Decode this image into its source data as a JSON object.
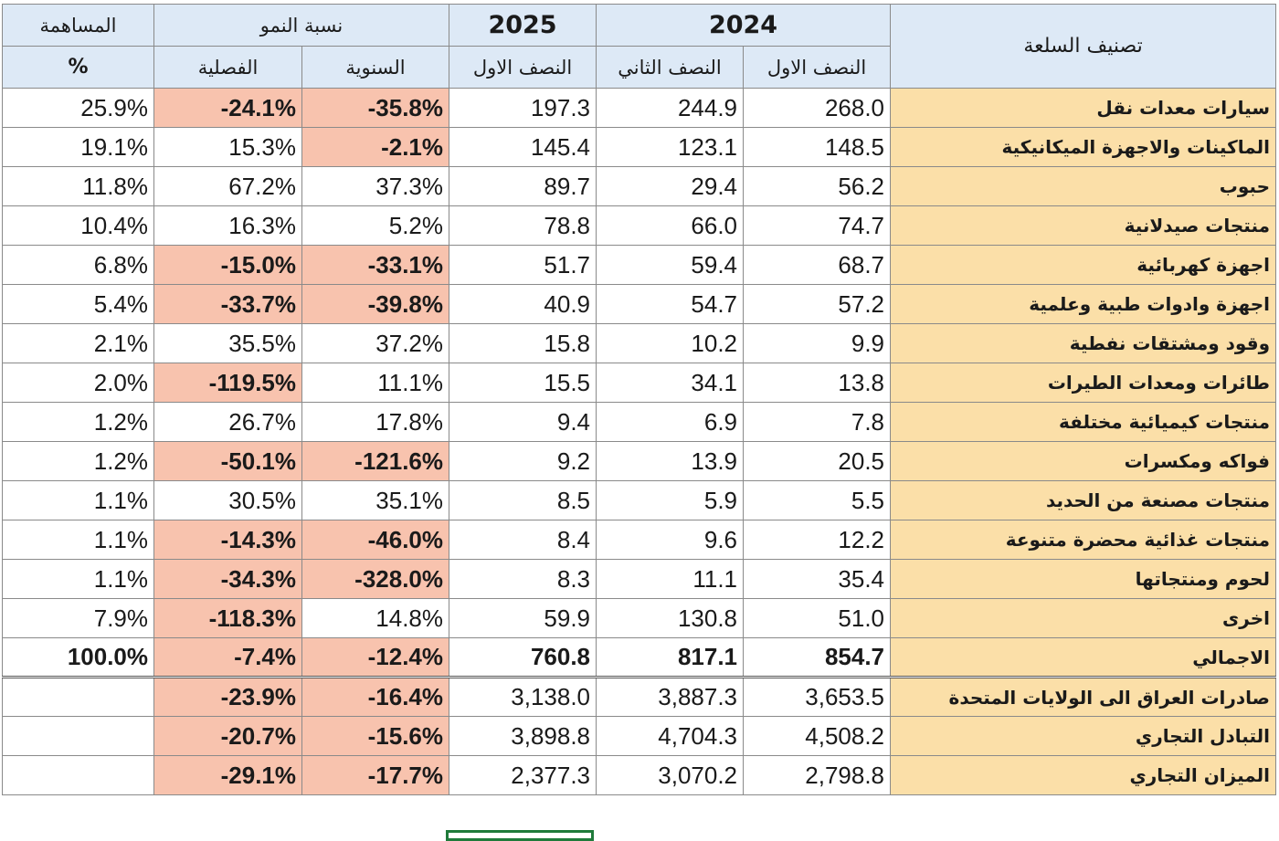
{
  "header": {
    "contribution": "المساهمة",
    "growth": "نسبة النمو",
    "year2025": "2025",
    "year2024": "2024",
    "category": "تصنيف السلعة",
    "percent": "%",
    "quarterly": "الفصلية",
    "annual": "السنوية",
    "h1_2025": "النصف الاول",
    "h2_2024": "النصف الثاني",
    "h1_2024": "النصف الاول"
  },
  "rows": [
    {
      "label": "سيارات معدات نقل",
      "h1_2024": "268.0",
      "h2_2024": "244.9",
      "h1_2025": "197.3",
      "annual": "-35.8%",
      "quarterly": "-24.1%",
      "share": "25.9%"
    },
    {
      "label": "الماكينات والاجهزة الميكانيكية",
      "h1_2024": "148.5",
      "h2_2024": "123.1",
      "h1_2025": "145.4",
      "annual": "-2.1%",
      "quarterly": "15.3%",
      "share": "19.1%"
    },
    {
      "label": "حبوب",
      "h1_2024": "56.2",
      "h2_2024": "29.4",
      "h1_2025": "89.7",
      "annual": "37.3%",
      "quarterly": "67.2%",
      "share": "11.8%"
    },
    {
      "label": "منتجات صيدلانية",
      "h1_2024": "74.7",
      "h2_2024": "66.0",
      "h1_2025": "78.8",
      "annual": "5.2%",
      "quarterly": "16.3%",
      "share": "10.4%"
    },
    {
      "label": "اجهزة كهربائية",
      "h1_2024": "68.7",
      "h2_2024": "59.4",
      "h1_2025": "51.7",
      "annual": "-33.1%",
      "quarterly": "-15.0%",
      "share": "6.8%"
    },
    {
      "label": "اجهزة وادوات طبية وعلمية",
      "h1_2024": "57.2",
      "h2_2024": "54.7",
      "h1_2025": "40.9",
      "annual": "-39.8%",
      "quarterly": "-33.7%",
      "share": "5.4%"
    },
    {
      "label": "وقود ومشتقات نفطية",
      "h1_2024": "9.9",
      "h2_2024": "10.2",
      "h1_2025": "15.8",
      "annual": "37.2%",
      "quarterly": "35.5%",
      "share": "2.1%"
    },
    {
      "label": "طائرات ومعدات الطيرات",
      "h1_2024": "13.8",
      "h2_2024": "34.1",
      "h1_2025": "15.5",
      "annual": "11.1%",
      "quarterly": "-119.5%",
      "share": "2.0%"
    },
    {
      "label": "منتجات كيميائية مختلفة",
      "h1_2024": "7.8",
      "h2_2024": "6.9",
      "h1_2025": "9.4",
      "annual": "17.8%",
      "quarterly": "26.7%",
      "share": "1.2%"
    },
    {
      "label": "فواكه ومكسرات",
      "h1_2024": "20.5",
      "h2_2024": "13.9",
      "h1_2025": "9.2",
      "annual": "-121.6%",
      "quarterly": "-50.1%",
      "share": "1.2%"
    },
    {
      "label": "منتجات مصنعة من الحديد",
      "h1_2024": "5.5",
      "h2_2024": "5.9",
      "h1_2025": "8.5",
      "annual": "35.1%",
      "quarterly": "30.5%",
      "share": "1.1%"
    },
    {
      "label": "منتجات غذائية محضرة متنوعة",
      "h1_2024": "12.2",
      "h2_2024": "9.6",
      "h1_2025": "8.4",
      "annual": "-46.0%",
      "quarterly": "-14.3%",
      "share": "1.1%"
    },
    {
      "label": "لحوم ومنتجاتها",
      "h1_2024": "35.4",
      "h2_2024": "11.1",
      "h1_2025": "8.3",
      "annual": "-328.0%",
      "quarterly": "-34.3%",
      "share": "1.1%"
    },
    {
      "label": "اخرى",
      "h1_2024": "51.0",
      "h2_2024": "130.8",
      "h1_2025": "59.9",
      "annual": "14.8%",
      "quarterly": "-118.3%",
      "share": "7.9%"
    },
    {
      "label": "الاجمالي",
      "h1_2024": "854.7",
      "h2_2024": "817.1",
      "h1_2025": "760.8",
      "annual": "-12.4%",
      "quarterly": "-7.4%",
      "share": "100.0%"
    },
    {
      "label": "صادرات العراق الى الولايات المتحدة",
      "h1_2024": "3,653.5",
      "h2_2024": "3,887.3",
      "h1_2025": "3,138.0",
      "annual": "-16.4%",
      "quarterly": "-23.9%",
      "share": ""
    },
    {
      "label": "التبادل التجاري",
      "h1_2024": "4,508.2",
      "h2_2024": "4,704.3",
      "h1_2025": "3,898.8",
      "annual": "-15.6%",
      "quarterly": "-20.7%",
      "share": ""
    },
    {
      "label": "الميزان التجاري",
      "h1_2024": "2,798.8",
      "h2_2024": "3,070.2",
      "h1_2025": "2,377.3",
      "annual": "-17.7%",
      "quarterly": "-29.1%",
      "share": ""
    }
  ],
  "colors": {
    "header_bg": "#dde9f6",
    "label_bg": "#fbdfa8",
    "negative_bg": "#f8c3ae",
    "selection_border": "#1f7a3a"
  }
}
